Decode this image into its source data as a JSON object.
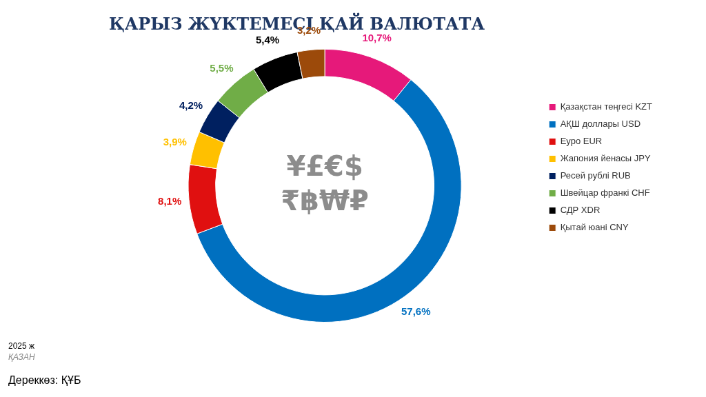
{
  "chart_data": {
    "type": "donut",
    "title": "ҚАРЫЗ ЖҮКТЕМЕСІ ҚАЙ ВАЛЮТАТА",
    "categories": [
      "Қазақстан теңгесі KZT",
      "АҚШ доллары USD",
      "Еуро EUR",
      "Жапония йенасы JPY",
      "Ресей рублі RUB",
      "Швейцар франкі CHF",
      "СДР XDR",
      "Қытай юані CNY"
    ],
    "values": [
      10.7,
      57.6,
      8.1,
      3.9,
      4.2,
      5.5,
      5.4,
      3.2
    ],
    "colors": [
      "#e6197a",
      "#0070c0",
      "#e01010",
      "#ffc000",
      "#002060",
      "#70ad47",
      "#000000",
      "#9c4a0a"
    ],
    "value_labels": [
      "10,7%",
      "57,6%",
      "8,1%",
      "3,9%",
      "4,2%",
      "5,5%",
      "5,4%",
      "3,2%"
    ],
    "legend": "right",
    "annotations": [
      "¥£€$",
      "₹฿₩₽",
      "2025 ж",
      "ҚАЗАН",
      "Дереккөз: ҚҰБ"
    ]
  }
}
